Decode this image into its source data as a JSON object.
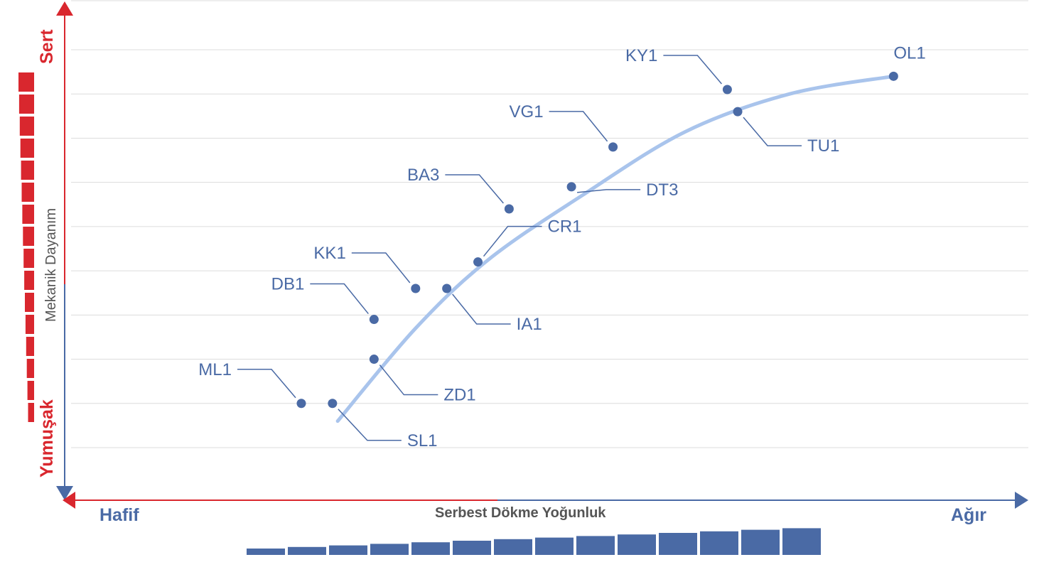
{
  "chart_data": {
    "type": "scatter",
    "xlabel": "Serbest Dökme Yoğunluk",
    "ylabel": "Mekanik Dayanım",
    "x_low_label": "Hafif",
    "x_high_label": "Ağır",
    "y_low_label": "Yumuşak",
    "y_high_label": "Sert",
    "xlim": [
      0,
      1
    ],
    "ylim": [
      0,
      9
    ],
    "grid": true,
    "trend_curve": true,
    "points": [
      {
        "label": "ML1",
        "x": 0.29,
        "y": 1.0
      },
      {
        "label": "SL1",
        "x": 0.32,
        "y": 1.0
      },
      {
        "label": "ZD1",
        "x": 0.36,
        "y": 2.0
      },
      {
        "label": "DB1",
        "x": 0.36,
        "y": 2.9
      },
      {
        "label": "KK1",
        "x": 0.4,
        "y": 3.6
      },
      {
        "label": "IA1",
        "x": 0.43,
        "y": 3.6
      },
      {
        "label": "CR1",
        "x": 0.46,
        "y": 4.2
      },
      {
        "label": "BA3",
        "x": 0.49,
        "y": 5.4
      },
      {
        "label": "DT3",
        "x": 0.55,
        "y": 5.9
      },
      {
        "label": "VG1",
        "x": 0.59,
        "y": 6.8
      },
      {
        "label": "KY1",
        "x": 0.7,
        "y": 8.1
      },
      {
        "label": "TU1",
        "x": 0.71,
        "y": 7.6
      },
      {
        "label": "OL1",
        "x": 0.86,
        "y": 8.4
      }
    ],
    "colors": {
      "point": "#4a6aa5",
      "curve": "#a9c4ec",
      "axis_red": "#d9272e",
      "axis_blue": "#4a6aa5",
      "grid": "#dcdcdc"
    }
  }
}
